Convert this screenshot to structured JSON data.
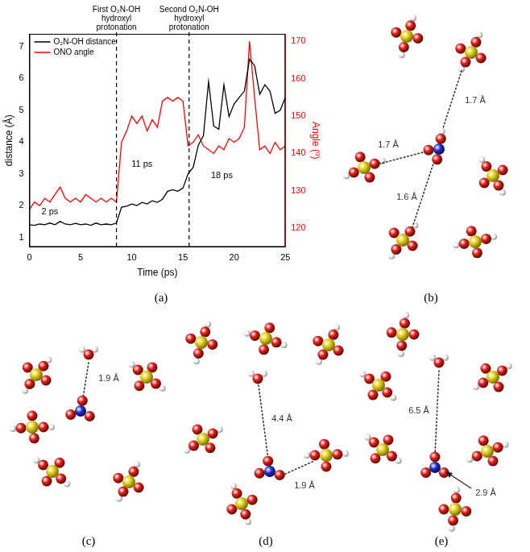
{
  "chart_data": {
    "type": "line",
    "x_label": "Time (ps)",
    "y_label": "distance (Å)",
    "y2_label": "Angle (º)",
    "x": [
      0,
      0.5,
      1,
      1.5,
      2,
      2.5,
      3,
      3.5,
      4,
      4.5,
      5,
      5.5,
      6,
      6.5,
      7,
      7.5,
      8,
      8.5,
      9,
      9.5,
      10,
      10.5,
      11,
      11.5,
      12,
      12.5,
      13,
      13.5,
      14,
      14.5,
      15,
      15.5,
      16,
      16.5,
      17,
      17.5,
      18,
      18.5,
      19,
      19.5,
      20,
      20.5,
      21,
      21.5,
      22,
      22.5,
      23,
      23.5,
      24,
      24.5,
      25
    ],
    "series": [
      {
        "name": "O₂N-OH distance",
        "color": "#000000",
        "values": [
          1.4,
          1.38,
          1.42,
          1.4,
          1.45,
          1.4,
          1.5,
          1.42,
          1.4,
          1.44,
          1.4,
          1.42,
          1.38,
          1.45,
          1.4,
          1.42,
          1.4,
          1.45,
          1.95,
          1.98,
          2.05,
          2.0,
          2.1,
          2.05,
          2.15,
          2.1,
          2.2,
          2.45,
          2.5,
          2.45,
          2.55,
          3.0,
          3.2,
          3.9,
          4.2,
          5.9,
          4.5,
          4.4,
          5.8,
          4.8,
          5.2,
          5.4,
          5.6,
          6.6,
          6.4,
          5.5,
          5.8,
          5.6,
          4.9,
          5.0,
          5.4
        ]
      },
      {
        "name": "ONO angle",
        "color": "#ff0000",
        "axis": "y2",
        "values": [
          125,
          127,
          126,
          128,
          127,
          129,
          131,
          128,
          127,
          128,
          127,
          129,
          128,
          127,
          128,
          127,
          128,
          127,
          143,
          146,
          150,
          148,
          150,
          146,
          149,
          147,
          154,
          155,
          154,
          155,
          154,
          142,
          143,
          145,
          142,
          141,
          140,
          142,
          141,
          144,
          143,
          144,
          147,
          170,
          155,
          141,
          142,
          140,
          143,
          141,
          142
        ]
      }
    ],
    "xlim": [
      0,
      25
    ],
    "xticks": [
      0,
      5,
      10,
      15,
      20,
      25
    ],
    "ylim": [
      0.7,
      7.4
    ],
    "yticks": [
      1,
      2,
      3,
      4,
      5,
      6,
      7
    ],
    "y2lim": [
      115,
      172
    ],
    "y2ticks": [
      120,
      130,
      140,
      150,
      160,
      170
    ],
    "grid": false,
    "legend": "upper left",
    "annotations": [
      {
        "text": "2 ps",
        "x": 2,
        "y": 1.8
      },
      {
        "text": "11 ps",
        "x": 11,
        "y": 3.3
      },
      {
        "text": "18 ps",
        "x": 18.8,
        "y": 2.95
      }
    ],
    "vlines": [
      {
        "x": 8.5,
        "label": [
          "First O₂N-OH",
          "hydroxyl",
          "protonation"
        ]
      },
      {
        "x": 15.6,
        "label": [
          "Second O₂N-OH",
          "hydroxyl",
          "protonation"
        ]
      }
    ]
  },
  "panels": [
    {
      "letter": "(a)"
    },
    {
      "letter": "(b)",
      "distances": [
        "1.7 Å",
        "1.7 Å",
        "1.6 Å"
      ]
    },
    {
      "letter": "(c)",
      "distances": [
        "1.9 Å"
      ]
    },
    {
      "letter": "(d)",
      "distances": [
        "4.4 Å",
        "1.9 Å"
      ]
    },
    {
      "letter": "(e)",
      "distances": [
        "6.5 Å",
        "2.9 Å"
      ]
    }
  ]
}
